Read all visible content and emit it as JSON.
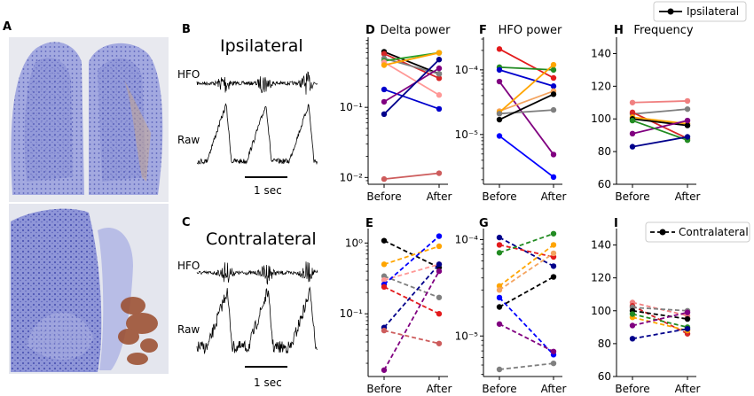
{
  "letters": {
    "A": "A",
    "B": "B",
    "C": "C",
    "D": "D",
    "E": "E",
    "F": "F",
    "G": "G",
    "H": "H",
    "I": "I"
  },
  "histology": {
    "stain_color": "#6a72c8",
    "bg_color": "#e6e8f2",
    "brown_color": "#9a4a2a"
  },
  "traces": {
    "ipsi_title": "Ipsilateral",
    "contra_title": "Contralateral",
    "hfo_label": "HFO",
    "raw_label": "Raw",
    "scale_label": "1 sec"
  },
  "legend": {
    "ipsi": "Ipsilateral",
    "contra": "Contralateral"
  },
  "chart_data": [
    {
      "panel": "D",
      "type": "line",
      "title": "Delta power",
      "yscale": "log",
      "ylim": [
        0.008,
        1.0
      ],
      "yticks": [
        0.01,
        0.1
      ],
      "ytick_labels": [
        "10⁻²",
        "10⁻¹"
      ],
      "categories": [
        "Before",
        "After"
      ],
      "linestyle": "solid",
      "series": [
        {
          "color": "#000000",
          "values": [
            0.62,
            0.3
          ]
        },
        {
          "color": "#d62728",
          "values": [
            0.58,
            0.26
          ]
        },
        {
          "color": "#7f7f7f",
          "values": [
            0.5,
            0.3
          ]
        },
        {
          "color": "#2ca02c",
          "values": [
            0.46,
            0.6
          ]
        },
        {
          "color": "#ff9896",
          "values": [
            0.44,
            0.15
          ]
        },
        {
          "color": "#ffa500",
          "values": [
            0.4,
            0.6
          ]
        },
        {
          "color": "#0000cd",
          "values": [
            0.18,
            0.095
          ]
        },
        {
          "color": "#800080",
          "values": [
            0.12,
            0.36
          ]
        },
        {
          "color": "#00008b",
          "values": [
            0.08,
            0.48
          ]
        },
        {
          "color": "#cd5c5c",
          "values": [
            0.0095,
            0.0115
          ]
        }
      ]
    },
    {
      "panel": "F",
      "type": "line",
      "title": "HFO power",
      "yscale": "log",
      "ylim": [
        1.7e-06,
        0.00032
      ],
      "yticks": [
        1e-05,
        0.0001
      ],
      "ytick_labels": [
        "10⁻⁵",
        "10⁻⁴"
      ],
      "categories": [
        "Before",
        "After"
      ],
      "linestyle": "solid",
      "series": [
        {
          "color": "#e31a1c",
          "values": [
            0.00021,
            7.5e-05
          ]
        },
        {
          "color": "#228b22",
          "values": [
            0.00011,
            0.0001
          ]
        },
        {
          "color": "#0000cd",
          "values": [
            0.0001,
            5.6e-05
          ]
        },
        {
          "color": "#800080",
          "values": [
            6.6e-05,
            4.9e-06
          ]
        },
        {
          "color": "#f4a460",
          "values": [
            2.3e-05,
            4.7e-05
          ]
        },
        {
          "color": "#ffa500",
          "values": [
            2.2e-05,
            0.00012
          ]
        },
        {
          "color": "#7f7f7f",
          "values": [
            2.1e-05,
            2.4e-05
          ]
        },
        {
          "color": "#000000",
          "values": [
            1.7e-05,
            4.2e-05
          ]
        },
        {
          "color": "#0000ff",
          "values": [
            9.5e-06,
            2.2e-06
          ]
        }
      ]
    },
    {
      "panel": "H",
      "type": "line",
      "title": "Frequency",
      "yscale": "linear",
      "ylim": [
        60,
        150
      ],
      "yticks": [
        60,
        80,
        100,
        120,
        140
      ],
      "categories": [
        "Before",
        "After"
      ],
      "linestyle": "solid",
      "series": [
        {
          "color": "#f08080",
          "values": [
            110,
            111
          ]
        },
        {
          "color": "#7f7f7f",
          "values": [
            103,
            106
          ]
        },
        {
          "color": "#d62728",
          "values": [
            104,
            88
          ]
        },
        {
          "color": "#ffa500",
          "values": [
            101,
            97
          ]
        },
        {
          "color": "#000000",
          "values": [
            100,
            96
          ]
        },
        {
          "color": "#800080",
          "values": [
            91,
            99
          ]
        },
        {
          "color": "#228b22",
          "values": [
            99,
            87
          ]
        },
        {
          "color": "#00008b",
          "values": [
            83,
            89
          ]
        }
      ]
    },
    {
      "panel": "E",
      "type": "line",
      "yscale": "log",
      "ylim": [
        0.013,
        1.6
      ],
      "yticks": [
        0.1,
        1.0
      ],
      "ytick_labels": [
        "10⁻¹",
        "10⁰"
      ],
      "categories": [
        "Before",
        "After"
      ],
      "linestyle": "dashed",
      "series": [
        {
          "color": "#000000",
          "values": [
            1.08,
            0.45
          ]
        },
        {
          "color": "#ffa500",
          "values": [
            0.5,
            0.9
          ]
        },
        {
          "color": "#7f7f7f",
          "values": [
            0.34,
            0.17
          ]
        },
        {
          "color": "#ff9896",
          "values": [
            0.3,
            0.5
          ]
        },
        {
          "color": "#0000ff",
          "values": [
            0.26,
            1.25
          ]
        },
        {
          "color": "#e31a1c",
          "values": [
            0.24,
            0.1
          ]
        },
        {
          "color": "#00008b",
          "values": [
            0.064,
            0.5
          ]
        },
        {
          "color": "#cd5c5c",
          "values": [
            0.058,
            0.038
          ]
        },
        {
          "color": "#800080",
          "values": [
            0.016,
            0.4
          ]
        }
      ]
    },
    {
      "panel": "G",
      "type": "line",
      "yscale": "log",
      "ylim": [
        3.8e-06,
        0.00013
      ],
      "yticks": [
        1e-05,
        0.0001
      ],
      "ytick_labels": [
        "10⁻⁵",
        "10⁻⁴"
      ],
      "categories": [
        "Before",
        "After"
      ],
      "linestyle": "dashed",
      "series": [
        {
          "color": "#00008b",
          "values": [
            0.000105,
            5.3e-05
          ]
        },
        {
          "color": "#e31a1c",
          "values": [
            8.8e-05,
            6.6e-05
          ]
        },
        {
          "color": "#228b22",
          "values": [
            7.3e-05,
            0.000115
          ]
        },
        {
          "color": "#ffa500",
          "values": [
            3.3e-05,
            8.8e-05
          ]
        },
        {
          "color": "#f4a460",
          "values": [
            3e-05,
            7.2e-05
          ]
        },
        {
          "color": "#0000ff",
          "values": [
            2.5e-05,
            6.4e-06
          ]
        },
        {
          "color": "#000000",
          "values": [
            2e-05,
            4.1e-05
          ]
        },
        {
          "color": "#800080",
          "values": [
            1.33e-05,
            6.9e-06
          ]
        },
        {
          "color": "#7f7f7f",
          "values": [
            4.5e-06,
            5.2e-06
          ]
        }
      ]
    },
    {
      "panel": "I",
      "type": "line",
      "yscale": "linear",
      "ylim": [
        60,
        150
      ],
      "yticks": [
        60,
        80,
        100,
        120,
        140
      ],
      "categories": [
        "Before",
        "After"
      ],
      "linestyle": "dashed",
      "series": [
        {
          "color": "#f08080",
          "values": [
            105,
            97
          ]
        },
        {
          "color": "#d62728",
          "values": [
            103,
            86
          ]
        },
        {
          "color": "#7f7f7f",
          "values": [
            102,
            100
          ]
        },
        {
          "color": "#000000",
          "values": [
            100,
            95
          ]
        },
        {
          "color": "#ffa500",
          "values": [
            96,
            88
          ]
        },
        {
          "color": "#228b22",
          "values": [
            98,
            90
          ]
        },
        {
          "color": "#800080",
          "values": [
            91,
            99
          ]
        },
        {
          "color": "#00008b",
          "values": [
            83,
            89
          ]
        }
      ]
    }
  ]
}
